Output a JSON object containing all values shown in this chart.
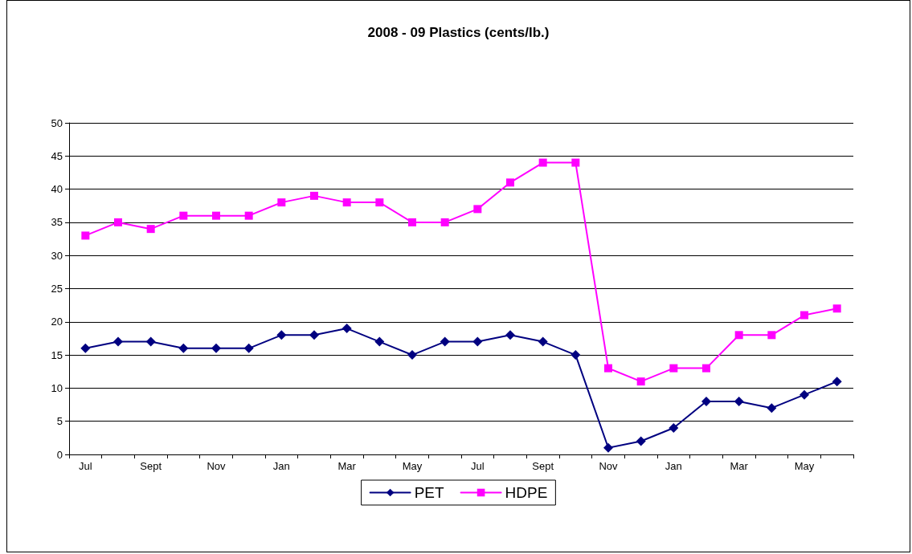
{
  "chart_data": {
    "type": "line",
    "title": "2008 - 09 Plastics (cents/lb.)",
    "categories": [
      "Jul",
      null,
      "Sept",
      null,
      "Nov",
      null,
      "Jan",
      null,
      "Mar",
      null,
      "May",
      null,
      "Jul",
      null,
      "Sept",
      null,
      "Nov",
      null,
      "Jan",
      null,
      "Mar",
      null,
      "May",
      null
    ],
    "series": [
      {
        "name": "PET",
        "color": "#000080",
        "marker": "diamond",
        "values": [
          16,
          17,
          17,
          16,
          16,
          16,
          18,
          18,
          19,
          17,
          15,
          17,
          17,
          18,
          17,
          15,
          1,
          2,
          4,
          8,
          8,
          7,
          9,
          11
        ]
      },
      {
        "name": "HDPE",
        "color": "#ff00ff",
        "marker": "square",
        "values": [
          33,
          35,
          34,
          36,
          36,
          36,
          38,
          39,
          38,
          38,
          35,
          35,
          37,
          41,
          44,
          44,
          13,
          11,
          13,
          13,
          18,
          18,
          21,
          22
        ]
      }
    ],
    "ylim": [
      0,
      50
    ],
    "yticks": [
      0,
      5,
      10,
      15,
      20,
      25,
      30,
      35,
      40,
      45,
      50
    ],
    "grid": "y",
    "legend": "bottom",
    "line_style": "solid"
  }
}
